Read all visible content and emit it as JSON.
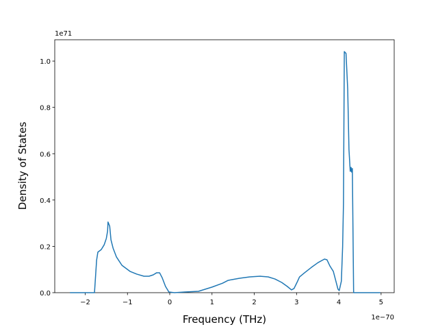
{
  "chart_data": {
    "type": "line",
    "xlabel": "Frequency (THz)",
    "ylabel": "Density of States",
    "x_offset_label": "1e−70",
    "y_offset_label": "1e71",
    "x": [
      -2.36,
      -1.78,
      -1.73,
      -1.7,
      -1.62,
      -1.55,
      -1.5,
      -1.47,
      -1.46,
      -1.42,
      -1.39,
      -1.34,
      -1.26,
      -1.13,
      -0.94,
      -0.78,
      -0.61,
      -0.49,
      -0.39,
      -0.31,
      -0.24,
      -0.18,
      -0.1,
      -0.02,
      0.11,
      0.36,
      0.68,
      1.0,
      1.25,
      1.38,
      1.46,
      1.65,
      1.89,
      2.14,
      2.33,
      2.49,
      2.65,
      2.78,
      2.88,
      2.94,
      3.01,
      3.07,
      3.19,
      3.35,
      3.51,
      3.66,
      3.72,
      3.79,
      3.87,
      3.93,
      3.98,
      4.01,
      4.06,
      4.09,
      4.11,
      4.13,
      4.17,
      4.21,
      4.24,
      4.27,
      4.29,
      4.3,
      4.32,
      4.35,
      4.98
    ],
    "series": [
      {
        "color": "#1f77b4",
        "values": [
          0,
          0,
          0.14,
          0.175,
          0.186,
          0.207,
          0.234,
          0.266,
          0.305,
          0.287,
          0.228,
          0.192,
          0.154,
          0.118,
          0.092,
          0.08,
          0.071,
          0.071,
          0.077,
          0.086,
          0.086,
          0.065,
          0.027,
          0.003,
          0,
          0.003,
          0.006,
          0.024,
          0.041,
          0.053,
          0.056,
          0.062,
          0.068,
          0.071,
          0.068,
          0.059,
          0.044,
          0.027,
          0.012,
          0.018,
          0.044,
          0.068,
          0.086,
          0.109,
          0.13,
          0.145,
          0.142,
          0.115,
          0.092,
          0.05,
          0.015,
          0.009,
          0.05,
          0.198,
          0.385,
          1.041,
          1.033,
          0.879,
          0.618,
          0.524,
          0.541,
          0.521,
          0.536,
          0,
          0
        ]
      }
    ],
    "xlim": [
      -2.72,
      5.31
    ],
    "ylim": [
      0,
      1.092
    ],
    "xticks": [
      {
        "value": -2,
        "label": "−2"
      },
      {
        "value": -1,
        "label": "−1"
      },
      0,
      1,
      2,
      3,
      4,
      5
    ],
    "yticks": [
      {
        "value": 0,
        "label": "0.0"
      },
      0.2,
      0.4,
      0.6,
      0.8,
      {
        "value": 1,
        "label": "1.0"
      }
    ]
  }
}
